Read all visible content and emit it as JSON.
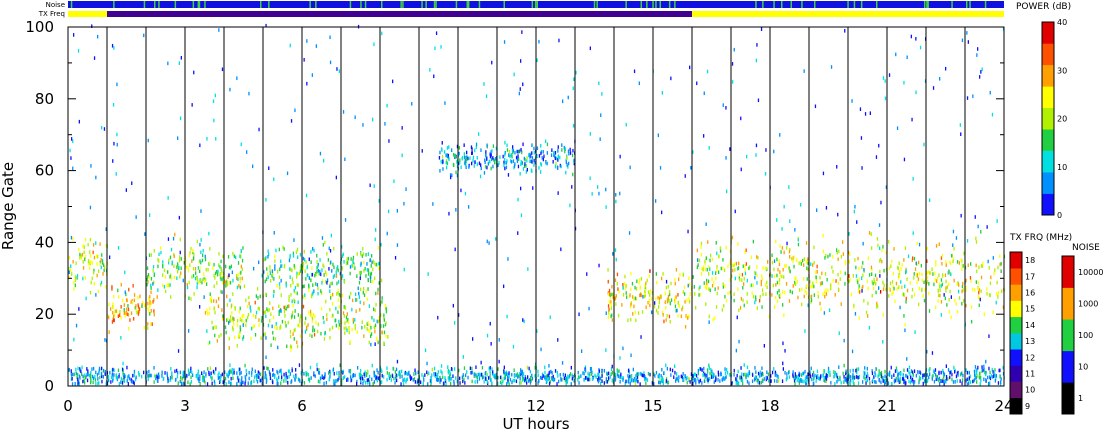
{
  "chart_data": {
    "type": "heatmap",
    "title": "",
    "xlabel": "UT hours",
    "ylabel": "Range Gate",
    "xlim": [
      0,
      24
    ],
    "ylim": [
      0,
      100
    ],
    "x_ticks": [
      "0",
      "3",
      "6",
      "9",
      "12",
      "15",
      "18",
      "21",
      "24"
    ],
    "y_ticks": [
      "0",
      "20",
      "40",
      "60",
      "80",
      "100"
    ],
    "grid": "vertical hourly lines",
    "strip_labels": {
      "noise": "Noise",
      "txfreq": "TX Freq"
    },
    "noise_strip": {
      "base_color": "#1010e0",
      "highlight_color": "#40d040"
    },
    "tx_freq_strip": [
      {
        "from": 0,
        "to": 1,
        "color": "#ffff00"
      },
      {
        "from": 1,
        "to": 16,
        "color": "#400090"
      },
      {
        "from": 16,
        "to": 24,
        "color": "#ffff00"
      }
    ],
    "power_scale": {
      "title": "POWER (dB)",
      "range": [
        0,
        40
      ],
      "ticks": [
        "0",
        "10",
        "20",
        "30",
        "40"
      ],
      "colors": [
        "#1010ff",
        "#0090ff",
        "#00e0e0",
        "#20d040",
        "#b0f000",
        "#ffff00",
        "#ffa000",
        "#ff5000",
        "#e00000"
      ]
    },
    "txfreq_scale": {
      "title": "TX FRQ (MHz)",
      "ticks": [
        "9",
        "10",
        "11",
        "12",
        "13",
        "14",
        "15",
        "16",
        "17",
        "18"
      ],
      "colors": [
        "#000000",
        "#60106a",
        "#3000b0",
        "#1010ff",
        "#00c8e0",
        "#20d040",
        "#ffff00",
        "#ffa000",
        "#ff5000",
        "#e00000"
      ]
    },
    "noise_scale": {
      "title": "NOISE",
      "ticks": [
        "1",
        "10",
        "100",
        "1000",
        "10000"
      ],
      "colors": [
        "#000000",
        "#1010ff",
        "#20d040",
        "#ffa000",
        "#e00000"
      ]
    },
    "echo_regions": [
      {
        "name": "band-a",
        "t_start": 0,
        "t_end": 1,
        "gate_center": 33,
        "gate_width": 5,
        "power_db": 22
      },
      {
        "name": "band-a2",
        "t_start": 1,
        "t_end": 2.2,
        "gate_center": 21,
        "gate_width": 4,
        "power_db": 27
      },
      {
        "name": "band-a3",
        "t_start": 2,
        "t_end": 4.5,
        "gate_center": 32,
        "gate_width": 5,
        "power_db": 18
      },
      {
        "name": "band-b",
        "t_start": 3.5,
        "t_end": 8.2,
        "gate_center": 19,
        "gate_width": 6,
        "power_db": 20
      },
      {
        "name": "band-b2",
        "t_start": 5,
        "t_end": 8,
        "gate_center": 32,
        "gate_width": 5,
        "power_db": 15
      },
      {
        "name": "band-c",
        "t_start": 9.5,
        "t_end": 13,
        "gate_center": 63,
        "gate_width": 3,
        "power_db": 8
      },
      {
        "name": "band-d",
        "t_start": 13.8,
        "t_end": 16,
        "gate_center": 24,
        "gate_width": 5,
        "power_db": 24
      },
      {
        "name": "band-e",
        "t_start": 16,
        "t_end": 24,
        "gate_center": 30,
        "gate_width": 7,
        "power_db": 22
      },
      {
        "name": "ground",
        "t_start": 0,
        "t_end": 24,
        "gate_center": 2,
        "gate_width": 2,
        "power_db": 8
      }
    ]
  }
}
